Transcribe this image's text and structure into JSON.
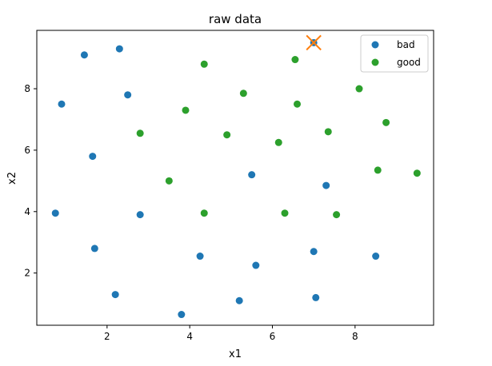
{
  "chart_data": {
    "type": "scatter",
    "title": "raw data",
    "xlabel": "x1",
    "ylabel": "x2",
    "xlim": [
      0.3,
      9.9
    ],
    "ylim": [
      0.3,
      9.9
    ],
    "xticks": [
      2,
      4,
      6,
      8
    ],
    "yticks": [
      2,
      4,
      6,
      8
    ],
    "grid": false,
    "legend_position": "top-right",
    "series": [
      {
        "name": "bad",
        "color": "#1f77b4",
        "points": [
          [
            1.45,
            9.1
          ],
          [
            2.3,
            9.3
          ],
          [
            0.9,
            7.5
          ],
          [
            2.5,
            7.8
          ],
          [
            1.65,
            5.8
          ],
          [
            0.75,
            3.95
          ],
          [
            2.8,
            3.9
          ],
          [
            5.5,
            5.2
          ],
          [
            7.3,
            4.85
          ],
          [
            1.7,
            2.8
          ],
          [
            4.25,
            2.55
          ],
          [
            5.6,
            2.25
          ],
          [
            7.0,
            2.7
          ],
          [
            8.5,
            2.55
          ],
          [
            2.2,
            1.3
          ],
          [
            3.8,
            0.65
          ],
          [
            5.2,
            1.1
          ],
          [
            7.05,
            1.2
          ],
          [
            7.0,
            9.5
          ]
        ]
      },
      {
        "name": "good",
        "color": "#2ca02c",
        "points": [
          [
            4.35,
            8.8
          ],
          [
            6.55,
            8.95
          ],
          [
            5.3,
            7.85
          ],
          [
            3.9,
            7.3
          ],
          [
            6.6,
            7.5
          ],
          [
            8.1,
            8.0
          ],
          [
            2.8,
            6.55
          ],
          [
            4.9,
            6.5
          ],
          [
            6.15,
            6.25
          ],
          [
            7.35,
            6.6
          ],
          [
            8.75,
            6.9
          ],
          [
            3.5,
            5.0
          ],
          [
            8.55,
            5.35
          ],
          [
            9.5,
            5.25
          ],
          [
            4.35,
            3.95
          ],
          [
            6.3,
            3.95
          ],
          [
            7.55,
            3.9
          ]
        ]
      }
    ],
    "highlight": {
      "marker": "x",
      "color": "#ff7f0e",
      "point": [
        7.0,
        9.5
      ]
    }
  }
}
